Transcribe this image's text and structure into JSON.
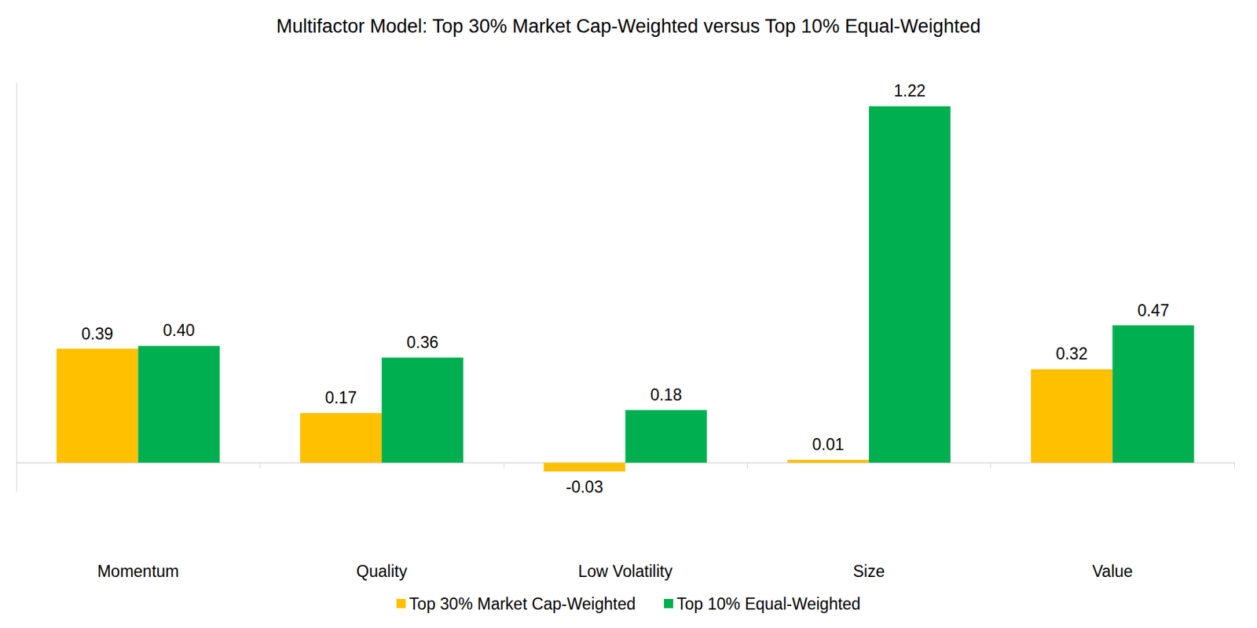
{
  "chart_data": {
    "type": "bar",
    "title": "Multifactor Model: Top 30% Market Cap-Weighted versus Top 10% Equal-Weighted",
    "categories": [
      "Momentum",
      "Quality",
      "Low Volatility",
      "Size",
      "Value"
    ],
    "series": [
      {
        "name": "Top 30% Market Cap-Weighted",
        "color": "#FFC000",
        "values": [
          0.39,
          0.17,
          -0.03,
          0.01,
          0.32
        ],
        "value_labels": [
          "0.39",
          "0.17",
          "-0.03",
          "0.01",
          "0.32"
        ]
      },
      {
        "name": "Top 10% Equal-Weighted",
        "color": "#00B050",
        "values": [
          0.4,
          0.36,
          0.18,
          1.22,
          0.47
        ],
        "value_labels": [
          "0.40",
          "0.36",
          "0.18",
          "1.22",
          "0.47"
        ]
      }
    ],
    "ylim": [
      -0.1,
      1.3
    ],
    "grid": false,
    "legend": "bottom",
    "data_labels": true,
    "tick_labels": "x"
  }
}
